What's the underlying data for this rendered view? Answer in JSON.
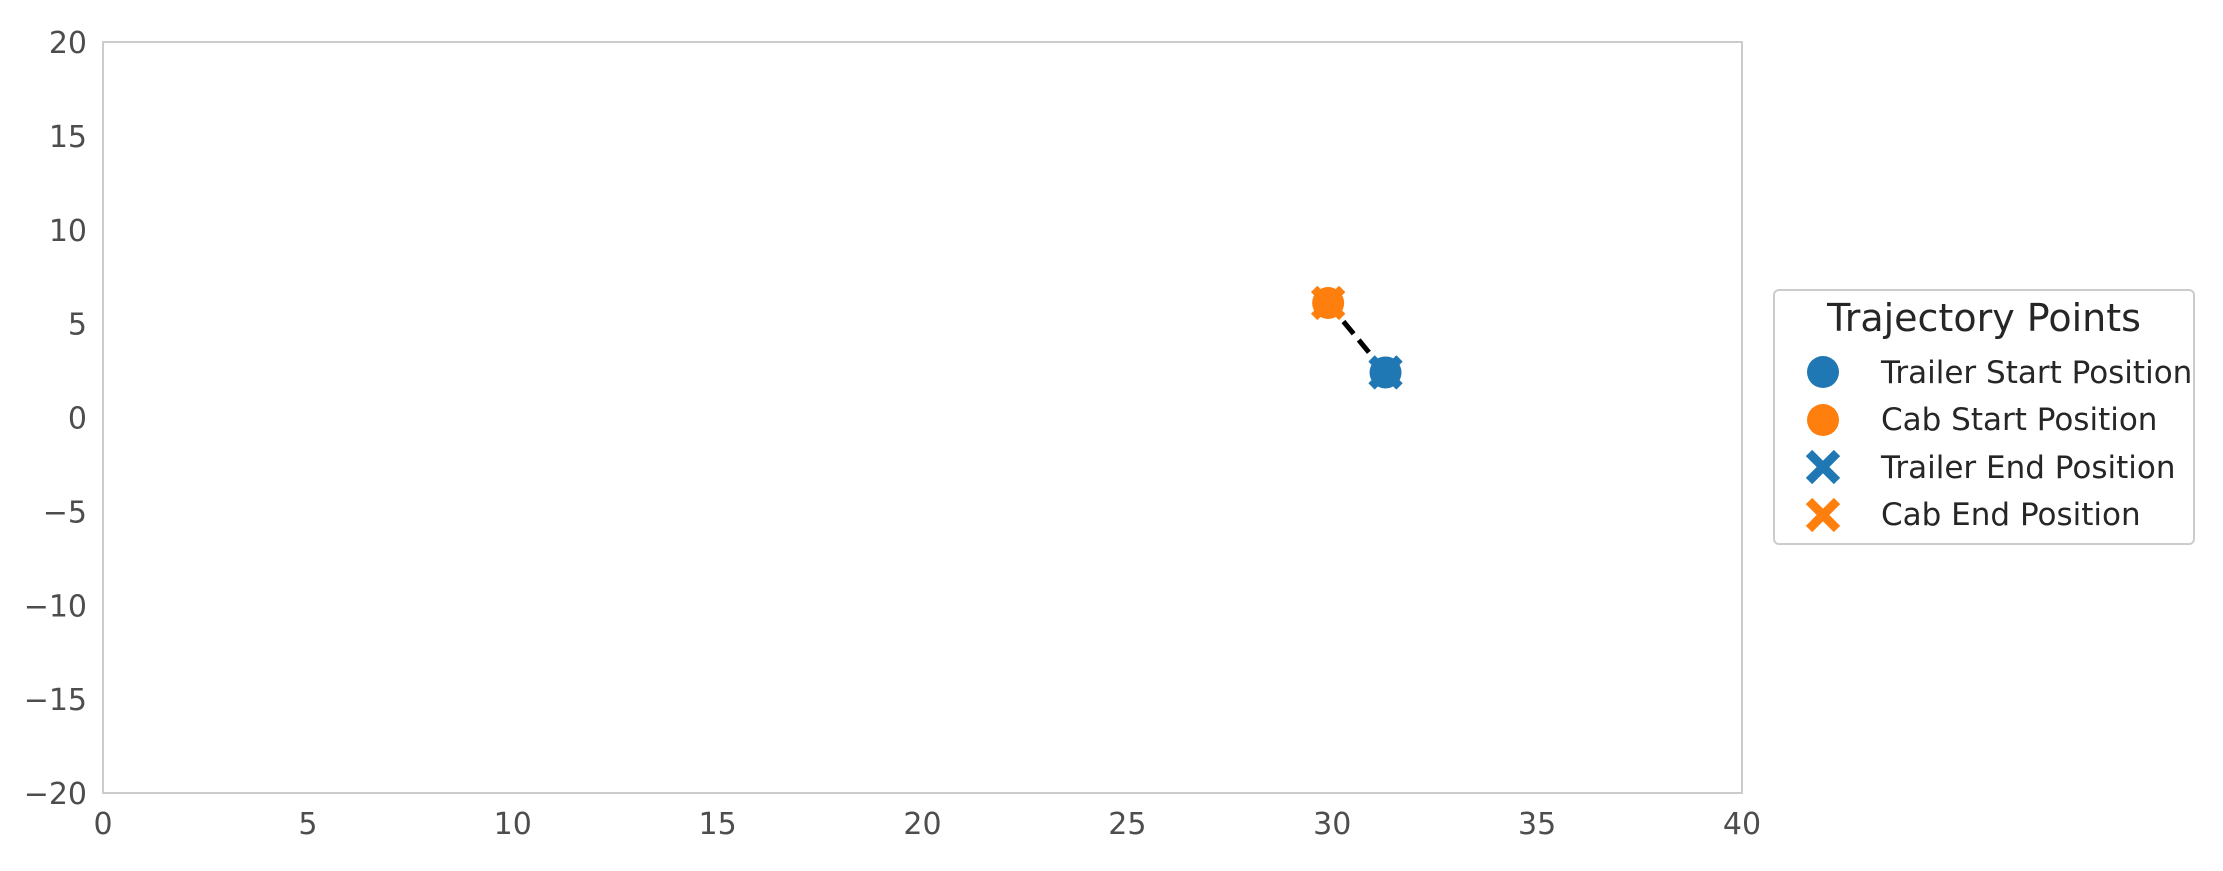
{
  "chart_data": {
    "type": "scatter",
    "title": "",
    "xlabel": "",
    "ylabel": "",
    "xlim": [
      0,
      40
    ],
    "ylim": [
      -20,
      20
    ],
    "xticks": [
      0,
      5,
      10,
      15,
      20,
      25,
      30,
      35,
      40
    ],
    "yticks": [
      -20,
      -15,
      -10,
      -5,
      0,
      5,
      10,
      15,
      20
    ],
    "xtick_labels": [
      "0",
      "5",
      "10",
      "15",
      "20",
      "25",
      "30",
      "35",
      "40"
    ],
    "ytick_labels": [
      "−20",
      "−15",
      "−10",
      "−5",
      "0",
      "5",
      "10",
      "15",
      "20"
    ],
    "grid": false,
    "legend": {
      "title": "Trajectory Points",
      "placement": "outside-right",
      "entries": [
        {
          "label": "Trailer Start Position",
          "marker": "circle",
          "color": "#1f77b4"
        },
        {
          "label": "Cab Start Position",
          "marker": "circle",
          "color": "#ff7f0e"
        },
        {
          "label": "Trailer End Position",
          "marker": "x",
          "color": "#1f77b4"
        },
        {
          "label": "Cab End Position",
          "marker": "x",
          "color": "#ff7f0e"
        }
      ]
    },
    "series": [
      {
        "name": "Trailer Start Position",
        "marker": "circle",
        "color": "#1f77b4",
        "points": [
          [
            31.3,
            2.4
          ]
        ]
      },
      {
        "name": "Cab Start Position",
        "marker": "circle",
        "color": "#ff7f0e",
        "points": [
          [
            29.9,
            6.1
          ]
        ]
      },
      {
        "name": "Trailer End Position",
        "marker": "x",
        "color": "#1f77b4",
        "points": [
          [
            31.3,
            2.4
          ]
        ]
      },
      {
        "name": "Cab End Position",
        "marker": "x",
        "color": "#ff7f0e",
        "points": [
          [
            29.9,
            6.1
          ]
        ]
      }
    ],
    "connector": {
      "style": "dashed",
      "color": "#000000",
      "from": [
        29.9,
        6.1
      ],
      "to": [
        31.3,
        2.4
      ]
    }
  }
}
